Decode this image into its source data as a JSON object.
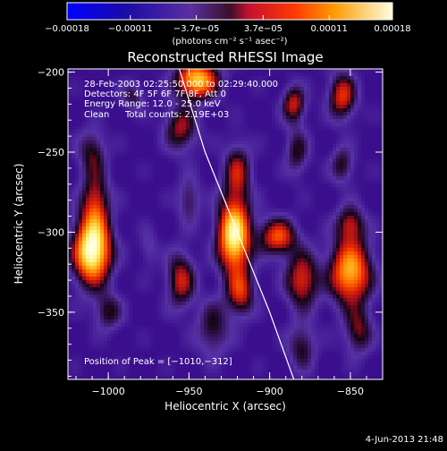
{
  "colors": {
    "background": "#000000",
    "foreground": "#ffffff",
    "map_low": "#1c0ba6",
    "map_mid": "#5a2fa0",
    "map_high": "#ffffd8"
  },
  "footer": {
    "timestamp": "4-Jun-2013 21:48"
  },
  "chart_data": {
    "type": "heatmap",
    "title": "Reconstructed RHESSI Image",
    "xlabel": "Heliocentric X (arcsec)",
    "ylabel": "Heliocentric Y (arcsec)",
    "xlim": [
      -1025,
      -830
    ],
    "ylim": [
      -392,
      -198
    ],
    "x_ticks": [
      {
        "value": -1000,
        "label": "−1000"
      },
      {
        "value": -950,
        "label": "−950"
      },
      {
        "value": -900,
        "label": "−900"
      },
      {
        "value": -850,
        "label": "−850"
      }
    ],
    "y_ticks": [
      {
        "value": -200,
        "label": "−200"
      },
      {
        "value": -250,
        "label": "−250"
      },
      {
        "value": -300,
        "label": "−300"
      },
      {
        "value": -350,
        "label": "−350"
      }
    ],
    "colorbar": {
      "range": [
        -0.00018,
        0.00018
      ],
      "ticks": [
        {
          "value": -0.00018,
          "label": "−0.00018"
        },
        {
          "value": -0.00011,
          "label": "−0.00011"
        },
        {
          "value": -3.7e-05,
          "label": "−3.7e−05"
        },
        {
          "value": 3.7e-05,
          "label": "3.7e−05"
        },
        {
          "value": 0.00011,
          "label": "0.00011"
        },
        {
          "value": 0.00018,
          "label": "0.00018"
        }
      ],
      "unit_label": "(photons cm⁻² s⁻¹ asec⁻²)"
    },
    "annotations": {
      "time_range": "28-Feb-2003 02:25:50.000 to 02:29:40.000",
      "detectors": "Detectors: 4F 5F 6F 7F 8F, Att 0",
      "energy_range": "Energy Range: 12.0 - 25.0 keV",
      "method": "Clean",
      "total_counts": "Total counts: 2.19E+03",
      "peak": "Position of Peak = [−1010,−312]"
    },
    "peak_position": [
      -1010,
      -312
    ],
    "limb_curve": [
      [
        -956,
        -198
      ],
      [
        -940,
        -250
      ],
      [
        -920,
        -300
      ],
      [
        -900,
        -350
      ],
      [
        -885,
        -392
      ]
    ],
    "sources": [
      {
        "x": -1010,
        "y": -312,
        "sigma_x": 8,
        "sigma_y": 14,
        "amp": 1.0
      },
      {
        "x": -1008,
        "y": -282,
        "sigma_x": 6,
        "sigma_y": 14,
        "amp": 0.45
      },
      {
        "x": -1010,
        "y": -250,
        "sigma_x": 6,
        "sigma_y": 10,
        "amp": 0.3
      },
      {
        "x": -1000,
        "y": -350,
        "sigma_x": 6,
        "sigma_y": 8,
        "amp": 0.3
      },
      {
        "x": -922,
        "y": -302,
        "sigma_x": 7,
        "sigma_y": 16,
        "amp": 0.95
      },
      {
        "x": -920,
        "y": -262,
        "sigma_x": 6,
        "sigma_y": 12,
        "amp": 0.4
      },
      {
        "x": -918,
        "y": -338,
        "sigma_x": 6,
        "sigma_y": 10,
        "amp": 0.45
      },
      {
        "x": -945,
        "y": -205,
        "sigma_x": 9,
        "sigma_y": 8,
        "amp": 0.8
      },
      {
        "x": -955,
        "y": -235,
        "sigma_x": 7,
        "sigma_y": 10,
        "amp": 0.4
      },
      {
        "x": -955,
        "y": -330,
        "sigma_x": 6,
        "sigma_y": 12,
        "amp": 0.45
      },
      {
        "x": -935,
        "y": -360,
        "sigma_x": 7,
        "sigma_y": 12,
        "amp": 0.3
      },
      {
        "x": -950,
        "y": -280,
        "sigma_x": 5,
        "sigma_y": 10,
        "amp": 0.25
      },
      {
        "x": -885,
        "y": -220,
        "sigma_x": 5,
        "sigma_y": 8,
        "amp": 0.45
      },
      {
        "x": -883,
        "y": -250,
        "sigma_x": 5,
        "sigma_y": 10,
        "amp": 0.3
      },
      {
        "x": -895,
        "y": -303,
        "sigma_x": 8,
        "sigma_y": 8,
        "amp": 0.55
      },
      {
        "x": -880,
        "y": -330,
        "sigma_x": 7,
        "sigma_y": 12,
        "amp": 0.5
      },
      {
        "x": -880,
        "y": -372,
        "sigma_x": 6,
        "sigma_y": 10,
        "amp": 0.3
      },
      {
        "x": -855,
        "y": -215,
        "sigma_x": 6,
        "sigma_y": 10,
        "amp": 0.5
      },
      {
        "x": -850,
        "y": -325,
        "sigma_x": 9,
        "sigma_y": 14,
        "amp": 0.75
      },
      {
        "x": -850,
        "y": -295,
        "sigma_x": 6,
        "sigma_y": 8,
        "amp": 0.4
      },
      {
        "x": -855,
        "y": -258,
        "sigma_x": 5,
        "sigma_y": 8,
        "amp": 0.3
      },
      {
        "x": -845,
        "y": -362,
        "sigma_x": 6,
        "sigma_y": 10,
        "amp": 0.35
      },
      {
        "x": -985,
        "y": -215,
        "sigma_x": 5,
        "sigma_y": 6,
        "amp": 0.25
      },
      {
        "x": -975,
        "y": -310,
        "sigma_x": 4,
        "sigma_y": 8,
        "amp": 0.15
      }
    ]
  }
}
